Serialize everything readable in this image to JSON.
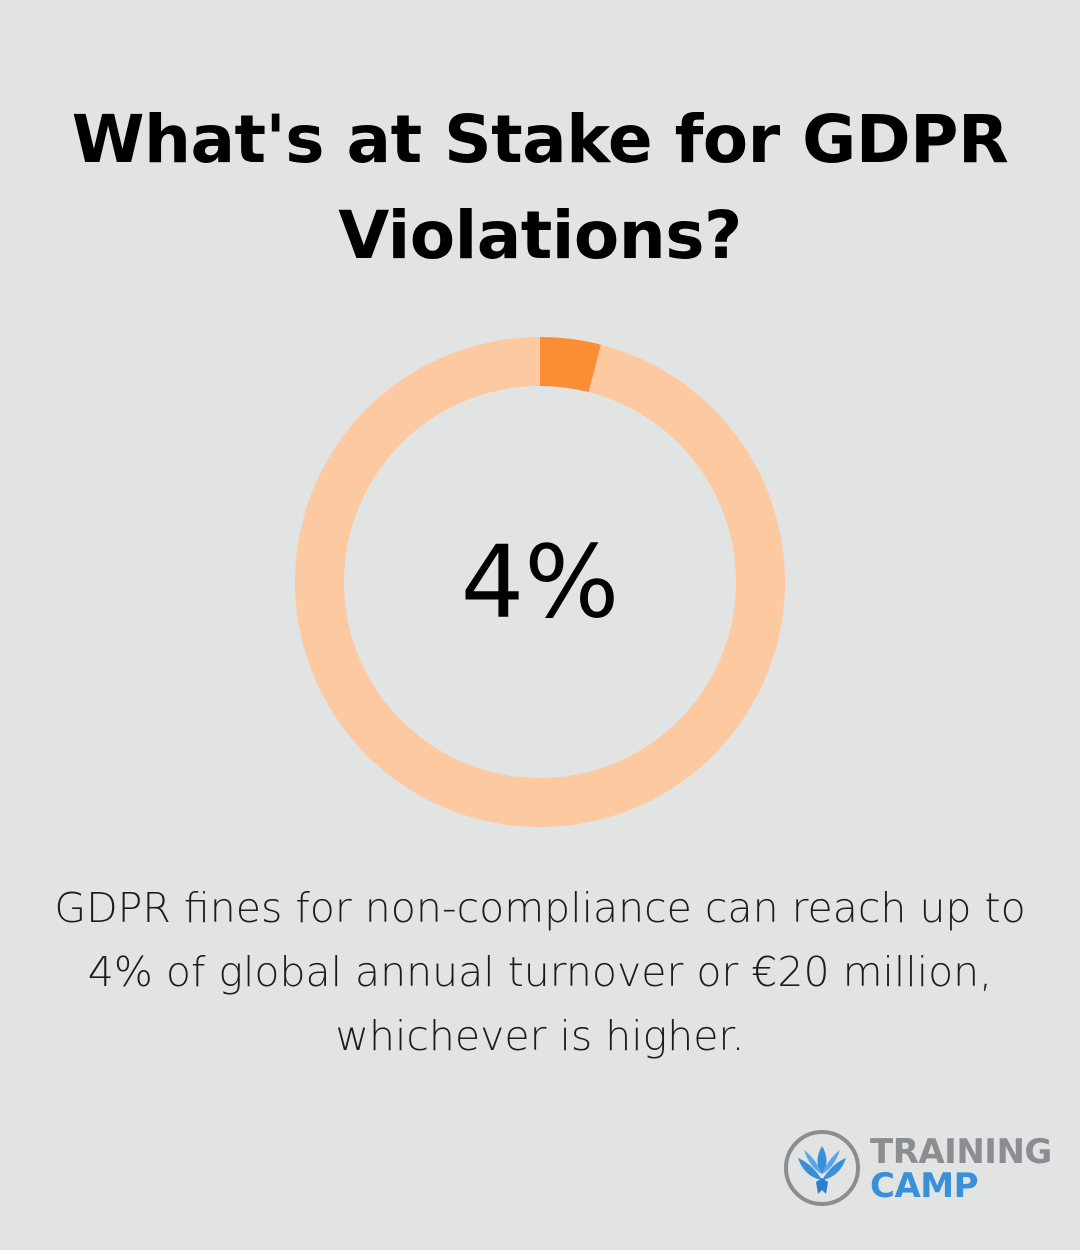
{
  "header": {
    "title": "What's at Stake for GDPR Violations?"
  },
  "chart_data": {
    "type": "pie",
    "variant": "donut",
    "value_percent": 4,
    "center_label": "4%",
    "slices": [
      {
        "value": 4,
        "color": "#fb8d35"
      },
      {
        "value": 96,
        "color": "#fdc9a0"
      }
    ]
  },
  "caption": {
    "text": "GDPR fines for non-compliance can reach up to 4% of global annual turnover or €20 million, whichever is higher."
  },
  "logo": {
    "line1": "TRAINING",
    "line2": "CAMP",
    "colors": {
      "line1": "#8a8d91",
      "line2": "#3a8fd9"
    }
  },
  "colors": {
    "background": "#e2e3e3",
    "accent": "#fb8d35",
    "track": "#fdc9a0"
  }
}
